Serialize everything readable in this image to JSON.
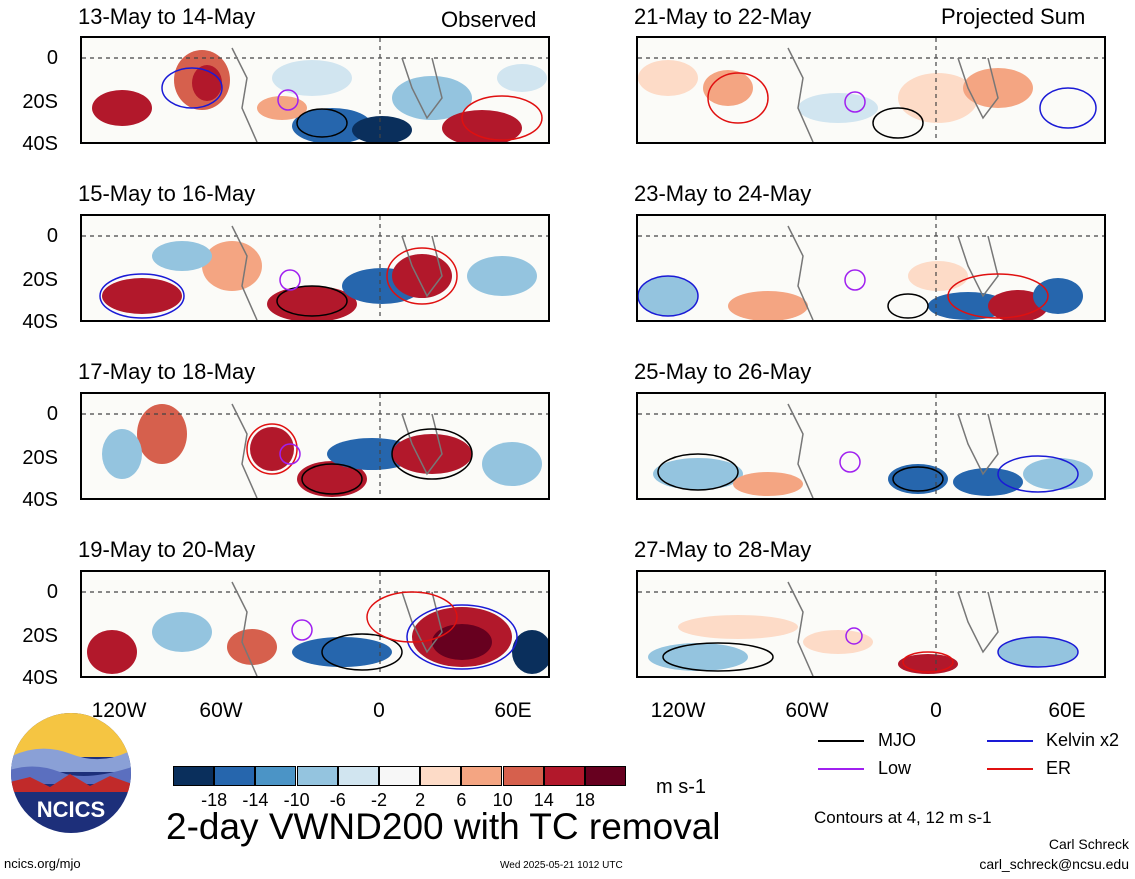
{
  "panels": [
    {
      "title": "13-May to 14-May",
      "label": "Observed"
    },
    {
      "title": "15-May to 16-May",
      "label": ""
    },
    {
      "title": "17-May to 18-May",
      "label": ""
    },
    {
      "title": "19-May to 20-May",
      "label": ""
    },
    {
      "title": "21-May to 22-May",
      "label": "Projected Sum"
    },
    {
      "title": "23-May to 24-May",
      "label": ""
    },
    {
      "title": "25-May to 26-May",
      "label": ""
    },
    {
      "title": "27-May to 28-May",
      "label": ""
    }
  ],
  "lat_labels": [
    "0",
    "20S",
    "40S"
  ],
  "lon_labels": [
    "120W",
    "60W",
    "0",
    "60E"
  ],
  "colorbar": {
    "labels": [
      "-18",
      "-14",
      "-10",
      "-6",
      "-2",
      "2",
      "6",
      "10",
      "14",
      "18"
    ],
    "colors": [
      "#0a2f5c",
      "#2666ad",
      "#4b94c6",
      "#94c4df",
      "#d1e5f0",
      "#f7f7f7",
      "#fddbc7",
      "#f4a582",
      "#d6604d",
      "#b2182b",
      "#67001f"
    ],
    "units": "m s-1"
  },
  "main_title": "2-day VWND200 with TC removal",
  "legend": {
    "mjo": {
      "label": "MJO",
      "color": "#000000"
    },
    "kelvin": {
      "label": "Kelvin x2",
      "color": "#1a1ad6"
    },
    "low": {
      "label": "Low",
      "color": "#a020f0"
    },
    "er": {
      "label": "ER",
      "color": "#e01010"
    }
  },
  "contours_note": "Contours at 4, 12 m s-1",
  "author": "Carl Schreck",
  "email": "carl_schreck@ncsu.edu",
  "url": "ncics.org/mjo",
  "timestamp": "Wed 2025-05-21 1012 UTC",
  "logo_text": "NCICS"
}
